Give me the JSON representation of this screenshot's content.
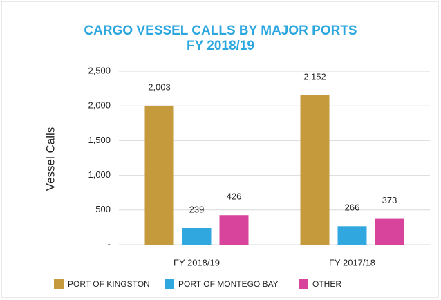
{
  "chart_data": {
    "type": "bar",
    "title": [
      "CARGO VESSEL CALLS BY MAJOR PORTS",
      "FY 2018/19"
    ],
    "y_label": "Vessel Calls",
    "categories": [
      "FY 2018/19",
      "FY 2017/18"
    ],
    "series": [
      {
        "name": "PORT OF KINGSTON",
        "color": "#c49a3c",
        "values": [
          2003,
          2152
        ],
        "value_labels": [
          "2,003",
          "2,152"
        ]
      },
      {
        "name": "PORT OF MONTEGO BAY",
        "color": "#30a8df",
        "values": [
          239,
          266
        ]
      },
      {
        "name": "OTHER",
        "color": "#d8449b",
        "values": [
          426,
          373
        ]
      }
    ],
    "ylim": [
      0,
      2500
    ],
    "yticks": [
      {
        "value": 0,
        "label": "-"
      },
      500,
      {
        "value": 1000,
        "label": "1,000"
      },
      {
        "value": 1500,
        "label": "1,500"
      },
      {
        "value": 2000,
        "label": "2,000"
      },
      {
        "value": 2500,
        "label": "2,500"
      }
    ],
    "grid": true,
    "legend": "bottom"
  }
}
